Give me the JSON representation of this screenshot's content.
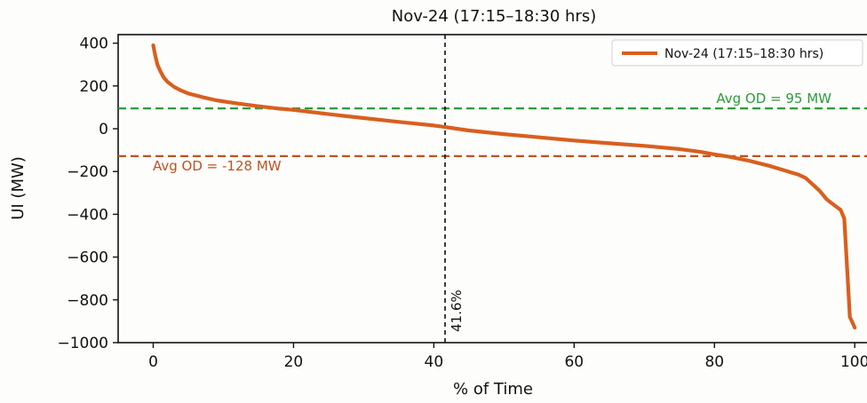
{
  "chart_data": {
    "type": "line",
    "title": "Nov-24 (17:15–18:30 hrs)",
    "xlabel": "% of Time",
    "ylabel": "UI (MW)",
    "xlim": [
      -5,
      102
    ],
    "ylim": [
      -1000,
      440
    ],
    "x_ticks": [
      0,
      20,
      40,
      60,
      80,
      100
    ],
    "y_ticks": [
      400,
      200,
      0,
      -200,
      -400,
      -600,
      -800,
      -1000
    ],
    "x_tick_labels": [
      "0",
      "20",
      "40",
      "60",
      "80",
      "100"
    ],
    "y_tick_labels": [
      "400",
      "200",
      "0",
      "−200",
      "−400",
      "−600",
      "−800",
      "−1000"
    ],
    "grid": false,
    "legend_position": "top-right",
    "series": [
      {
        "name": "Nov-24 (17:15–18:30 hrs)",
        "color": "#d95f1e",
        "x": [
          0,
          0.3,
          0.6,
          1,
          1.5,
          2,
          3,
          4,
          5,
          7,
          9,
          12,
          15,
          18,
          20,
          25,
          30,
          35,
          40,
          41.6,
          45,
          50,
          55,
          60,
          65,
          70,
          75,
          78,
          80,
          82,
          85,
          88,
          90,
          92,
          93,
          94,
          95,
          96,
          97,
          98,
          98.5,
          99,
          99.3,
          99.6,
          100
        ],
        "y": [
          390,
          340,
          300,
          270,
          240,
          220,
          195,
          178,
          165,
          148,
          133,
          118,
          105,
          94,
          88,
          68,
          50,
          32,
          15,
          8,
          -8,
          -25,
          -40,
          -55,
          -68,
          -80,
          -95,
          -108,
          -120,
          -130,
          -150,
          -175,
          -195,
          -215,
          -230,
          -260,
          -290,
          -330,
          -355,
          -380,
          -420,
          -700,
          -880,
          -900,
          -930
        ]
      }
    ],
    "annotations": {
      "avg_od_positive": {
        "label": "Avg OD = 95 MW",
        "value": 95,
        "color": "#2a9d3a"
      },
      "avg_od_negative": {
        "label": "Avg OD = -128 MW",
        "value": -128,
        "color": "#c0521e"
      },
      "vline": {
        "label": "41.6%",
        "value": 41.6,
        "color": "#111111"
      }
    }
  }
}
